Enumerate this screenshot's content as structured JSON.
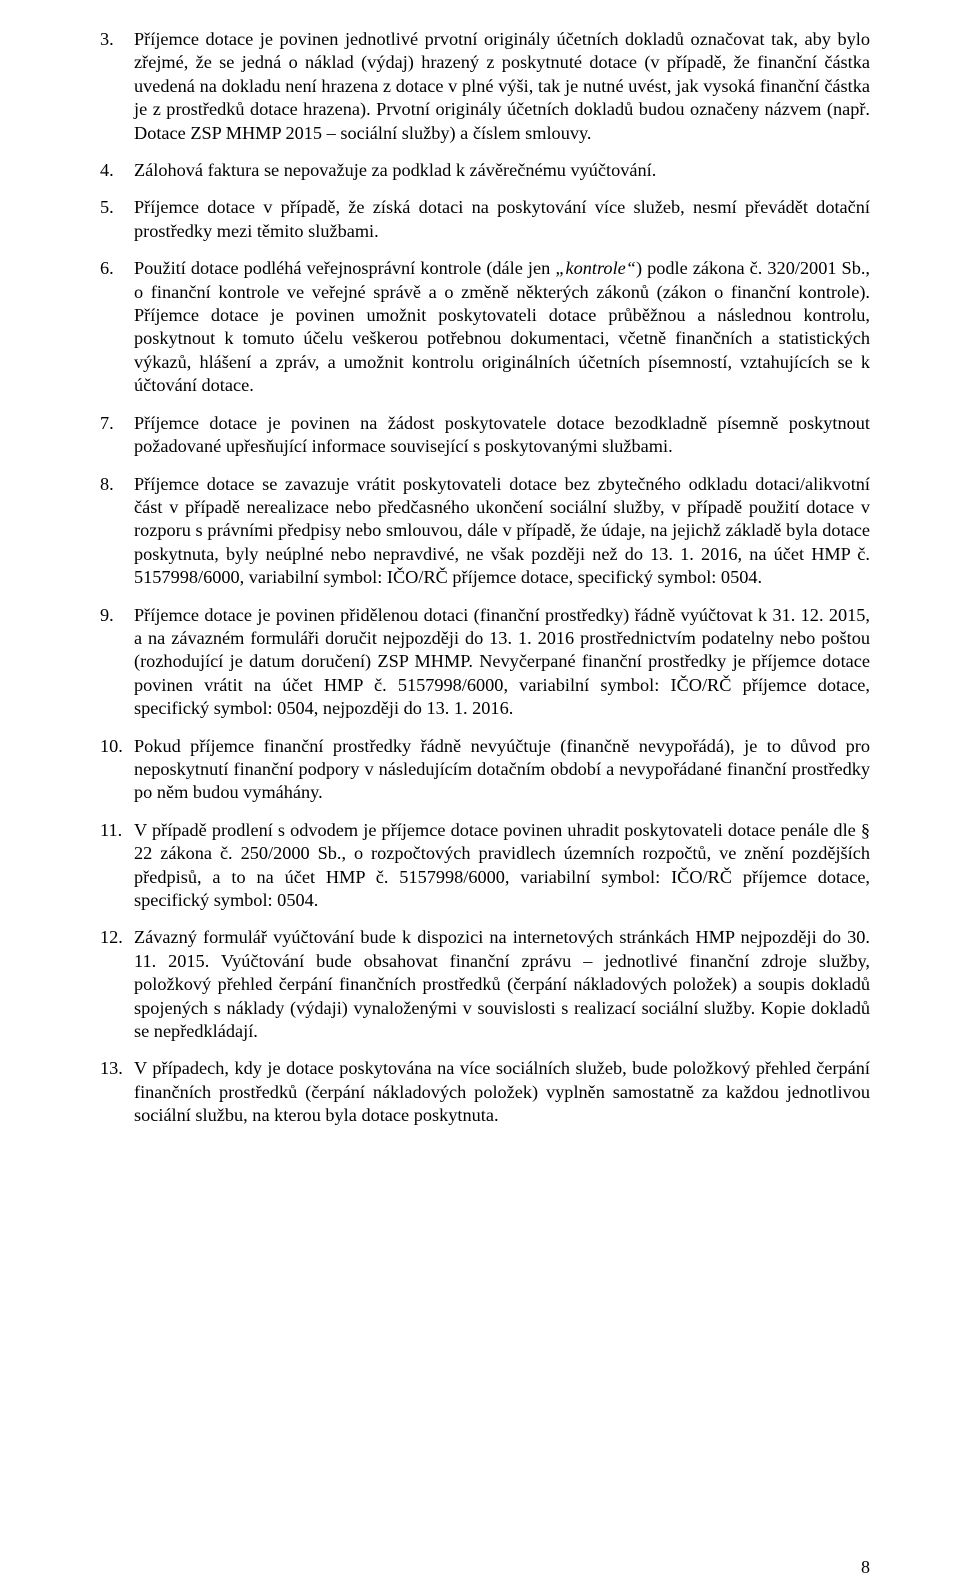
{
  "items": [
    {
      "n": "3.",
      "text": "Příjemce dotace je povinen jednotlivé prvotní originály účetních dokladů označovat tak, aby bylo zřejmé, že se jedná o náklad (výdaj) hrazený z poskytnuté dotace (v případě, že finanční částka uvedená na dokladu není hrazena z dotace v plné výši, tak je nutné uvést, jak vysoká finanční částka je z prostředků dotace hrazena). Prvotní originály účetních dokladů budou označeny názvem (např. Dotace ZSP MHMP 2015 – sociální služby) a číslem smlouvy."
    },
    {
      "n": "4.",
      "text": "Zálohová faktura se nepovažuje za podklad k závěrečnému vyúčtování."
    },
    {
      "n": "5.",
      "text": "Příjemce dotace v případě, že získá dotaci na poskytování více služeb, nesmí převádět dotační prostředky mezi těmito službami."
    },
    {
      "n": "6.",
      "pre": "Použití dotace podléhá veřejnosprávní kontrole (dále jen ",
      "italic": "„kontrole“",
      "post": ") podle zákona č. 320/2001 Sb., o finanční kontrole ve veřejné správě a o změně některých zákonů (zákon o finanční kontrole). Příjemce dotace je povinen umožnit poskytovateli dotace průběžnou a následnou kontrolu, poskytnout k tomuto účelu veškerou potřebnou dokumentaci, včetně finančních a statistických výkazů, hlášení a zpráv, a umožnit kontrolu originálních účetních písemností, vztahujících se k účtování dotace."
    },
    {
      "n": "7.",
      "text": "Příjemce dotace je povinen na žádost poskytovatele dotace bezodkladně písemně poskytnout požadované upřesňující informace související s poskytovanými službami."
    },
    {
      "n": "8.",
      "text": "Příjemce dotace se zavazuje vrátit poskytovateli dotace bez zbytečného odkladu dotaci/alikvotní část v případě nerealizace nebo předčasného ukončení sociální služby, v případě použití dotace v rozporu s právními předpisy nebo smlouvou, dále v případě, že údaje, na jejichž základě byla dotace poskytnuta, byly neúplné nebo nepravdivé, ne však později než do 13. 1. 2016, na účet HMP č. 5157998/6000, variabilní symbol: IČO/RČ příjemce dotace, specifický symbol: 0504."
    },
    {
      "n": "9.",
      "text": "Příjemce dotace je povinen přidělenou dotaci (finanční prostředky) řádně vyúčtovat k 31. 12. 2015, a na závazném formuláři doručit nejpozději do 13. 1. 2016 prostřednictvím podatelny nebo poštou (rozhodující je datum doručení) ZSP MHMP. Nevyčerpané finanční prostředky je příjemce dotace povinen vrátit na účet HMP č. 5157998/6000, variabilní symbol: IČO/RČ příjemce dotace, specifický symbol: 0504, nejpozději do 13. 1. 2016."
    },
    {
      "n": "10.",
      "text": "Pokud příjemce finanční prostředky řádně nevyúčtuje (finančně nevypořádá), je to důvod pro neposkytnutí finanční podpory v následujícím dotačním období a nevypořádané finanční prostředky po něm budou vymáhány."
    },
    {
      "n": "11.",
      "text": "V případě prodlení s odvodem je příjemce dotace povinen uhradit poskytovateli dotace penále dle § 22 zákona č. 250/2000 Sb., o rozpočtových pravidlech územních rozpočtů, ve znění pozdějších předpisů, a to na účet HMP č. 5157998/6000, variabilní symbol: IČO/RČ příjemce dotace, specifický symbol: 0504."
    },
    {
      "n": "12.",
      "text": "Závazný formulář vyúčtování bude k dispozici na internetových stránkách HMP nejpozději do 30. 11. 2015. Vyúčtování bude obsahovat finanční zprávu – jednotlivé finanční zdroje služby, položkový přehled čerpání finančních prostředků (čerpání nákladových položek) a soupis dokladů spojených s náklady (výdaji) vynaloženými v souvislosti s realizací sociální služby. Kopie dokladů se nepředkládají."
    },
    {
      "n": "13.",
      "text": "V případech, kdy je dotace poskytována na více sociálních služeb, bude položkový přehled čerpání finančních prostředků (čerpání nákladových položek) vyplněn samostatně za každou jednotlivou sociální službu, na kterou byla dotace poskytnuta."
    }
  ],
  "page_number": "8"
}
